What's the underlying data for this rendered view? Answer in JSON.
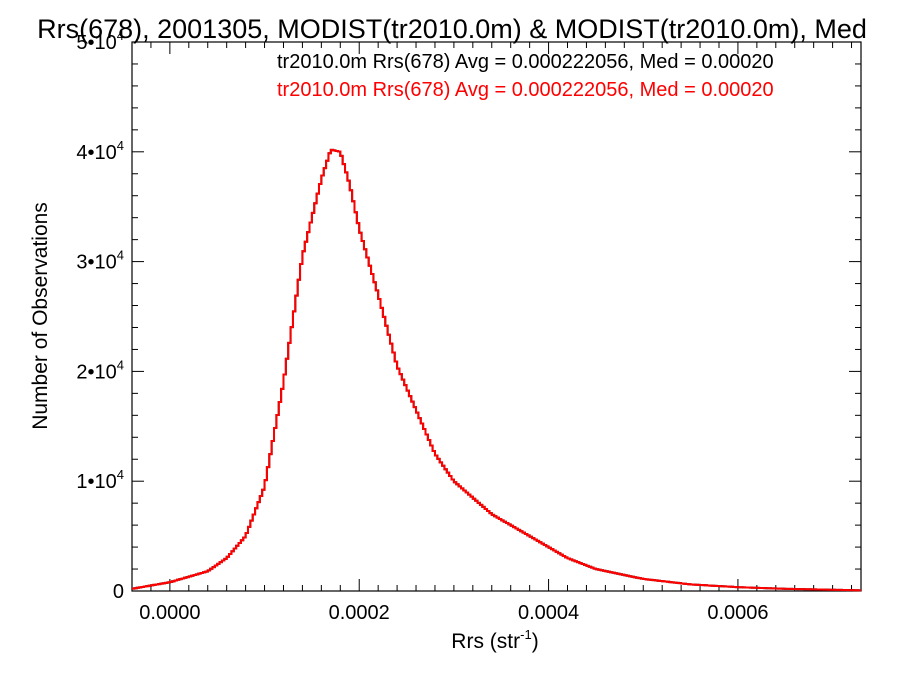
{
  "chart_data": {
    "type": "histogram-step",
    "title": "Rrs(678), 2001305, MODIST(tr2010.0m) & MODIST(tr2010.0m), Med",
    "xlabel": "Rrs (str",
    "xlabel_sup": "-1",
    "xlabel_close": ")",
    "ylabel": "Number of Observations",
    "xlim": [
      -4e-05,
      0.00073
    ],
    "ylim": [
      0,
      50000
    ],
    "xticks": [
      {
        "value": 0.0,
        "label": "0.0000"
      },
      {
        "value": 0.0002,
        "label": "0.0002"
      },
      {
        "value": 0.0004,
        "label": "0.0004"
      },
      {
        "value": 0.0006,
        "label": "0.0006"
      }
    ],
    "yticks": [
      {
        "value": 0,
        "mant": "0",
        "exp": ""
      },
      {
        "value": 10000,
        "mant": "1•10",
        "exp": "4"
      },
      {
        "value": 20000,
        "mant": "2•10",
        "exp": "4"
      },
      {
        "value": 30000,
        "mant": "3•10",
        "exp": "4"
      },
      {
        "value": 40000,
        "mant": "4•10",
        "exp": "4"
      },
      {
        "value": 50000,
        "mant": "5•10",
        "exp": "4"
      }
    ],
    "grid": false,
    "series": [
      {
        "name": "tr2010.0m Rrs(678)",
        "color": "#000000",
        "stats": "tr2010.0m Rrs(678) Avg = 0.000222056, Med = 0.00020"
      },
      {
        "name": "tr2010.0m Rrs(678)",
        "color": "#ff0000",
        "stats": "tr2010.0m Rrs(678) Avg = 0.000222056, Med = 0.00020"
      }
    ],
    "curve": {
      "x": [
        -4e-05,
        0.0,
        4e-05,
        6e-05,
        8e-05,
        0.0001,
        0.00012,
        0.00014,
        0.00016,
        0.00017,
        0.00018,
        0.00019,
        0.0002,
        0.00022,
        0.00024,
        0.00026,
        0.00028,
        0.0003,
        0.00032,
        0.00034,
        0.00036,
        0.00038,
        0.0004,
        0.00042,
        0.00045,
        0.0005,
        0.00055,
        0.0006,
        0.00065,
        0.00073
      ],
      "y": [
        200,
        800,
        1800,
        3000,
        5000,
        9500,
        19000,
        30500,
        37500,
        40200,
        40000,
        37000,
        33000,
        27000,
        20500,
        16500,
        12500,
        10000,
        8500,
        7000,
        6000,
        5000,
        4000,
        3000,
        2000,
        1100,
        600,
        350,
        200,
        60
      ]
    }
  }
}
